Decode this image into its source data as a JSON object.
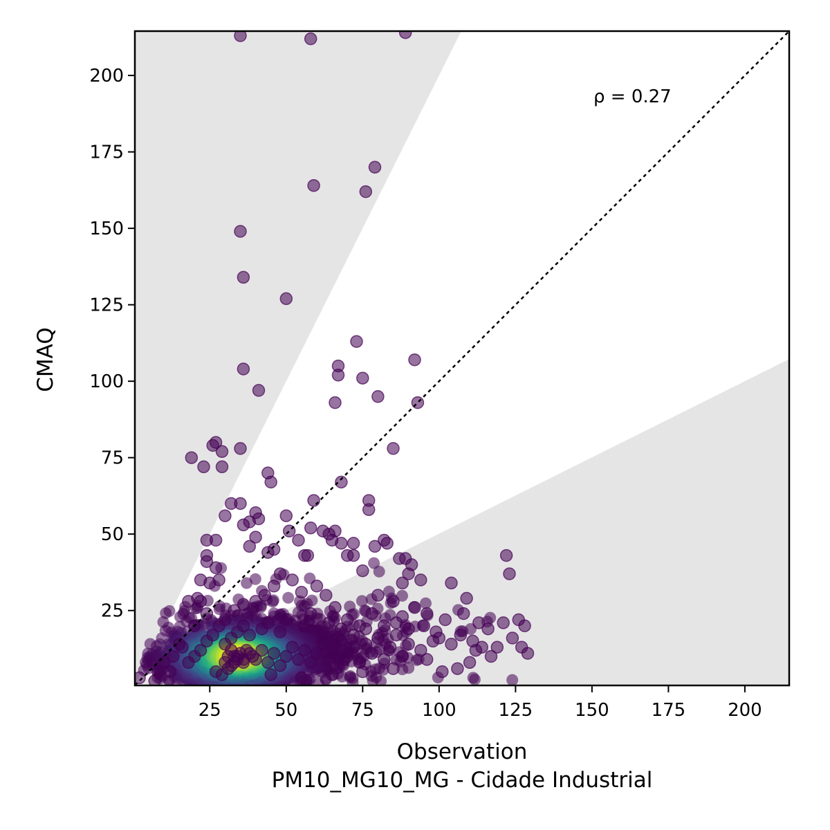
{
  "chart_data": {
    "type": "scatter",
    "title": "",
    "xlabel": "Observation",
    "xlabel_sub": "PM10_MG10_MG - Cidade Industrial",
    "ylabel": "CMAQ",
    "xlim": [
      0.5,
      214.5
    ],
    "ylim": [
      0.5,
      214.5
    ],
    "x_ticks": [
      25,
      50,
      75,
      100,
      125,
      150,
      175,
      200
    ],
    "y_ticks": [
      25,
      50,
      75,
      100,
      125,
      150,
      175,
      200
    ],
    "x_tick_labels": [
      "25",
      "50",
      "75",
      "100",
      "125",
      "150",
      "175",
      "200"
    ],
    "y_tick_labels": [
      "25",
      "50",
      "75",
      "100",
      "125",
      "150",
      "175",
      "200"
    ],
    "annotation": "ρ = 0.27",
    "reference_line": "1:1",
    "factor_of_two_band": true,
    "grid": false,
    "legend": "none",
    "colormap": "viridis (point density)",
    "colors": {
      "band": "#e5e5e5",
      "outlier": "#440154",
      "density_low": "#3b0f70",
      "density_high": "#fde725"
    },
    "points": [
      [
        2,
        3
      ],
      [
        35,
        213
      ],
      [
        58,
        212
      ],
      [
        89,
        214
      ],
      [
        59,
        164
      ],
      [
        76,
        162
      ],
      [
        79,
        170
      ],
      [
        35,
        149
      ],
      [
        36,
        134
      ],
      [
        50,
        127
      ],
      [
        36,
        104
      ],
      [
        41,
        97
      ],
      [
        73,
        113
      ],
      [
        67,
        105
      ],
      [
        67,
        102
      ],
      [
        75,
        101
      ],
      [
        66,
        93
      ],
      [
        80,
        95
      ],
      [
        92,
        107
      ],
      [
        93,
        93
      ],
      [
        19,
        75
      ],
      [
        23,
        72
      ],
      [
        26,
        79
      ],
      [
        27,
        80
      ],
      [
        29,
        77
      ],
      [
        29,
        72
      ],
      [
        35,
        78
      ],
      [
        44,
        70
      ],
      [
        45,
        67
      ],
      [
        68,
        67
      ],
      [
        85,
        78
      ],
      [
        59,
        61
      ],
      [
        77,
        61
      ],
      [
        77,
        58
      ],
      [
        32,
        60
      ],
      [
        35,
        60
      ],
      [
        30,
        56
      ],
      [
        40,
        57
      ],
      [
        41,
        55
      ],
      [
        38,
        54
      ],
      [
        36,
        53
      ],
      [
        50,
        56
      ],
      [
        51,
        51
      ],
      [
        58,
        52
      ],
      [
        62,
        51
      ],
      [
        64,
        50
      ],
      [
        66,
        51
      ],
      [
        54,
        48
      ],
      [
        65,
        48
      ],
      [
        68,
        47
      ],
      [
        72,
        47
      ],
      [
        82,
        48
      ],
      [
        83,
        47
      ],
      [
        79,
        46
      ],
      [
        40,
        49
      ],
      [
        38,
        46
      ],
      [
        44,
        44
      ],
      [
        46,
        45
      ],
      [
        56,
        43
      ],
      [
        57,
        43
      ],
      [
        70,
        43
      ],
      [
        72,
        43
      ],
      [
        87,
        42
      ],
      [
        89,
        42
      ],
      [
        122,
        43
      ],
      [
        123,
        37
      ],
      [
        104,
        34
      ],
      [
        75,
        38
      ],
      [
        91,
        40
      ],
      [
        90,
        37
      ],
      [
        94,
        35
      ],
      [
        88,
        34
      ],
      [
        24,
        48
      ],
      [
        27,
        48
      ],
      [
        24,
        43
      ],
      [
        24,
        41
      ],
      [
        27,
        39
      ],
      [
        22,
        35
      ],
      [
        25,
        34
      ],
      [
        28,
        35
      ],
      [
        18,
        28
      ],
      [
        21,
        29
      ],
      [
        22,
        28
      ],
      [
        24,
        24
      ],
      [
        20,
        20
      ],
      [
        15,
        14
      ],
      [
        13,
        10
      ],
      [
        16,
        13
      ],
      [
        10,
        8
      ],
      [
        8,
        5
      ],
      [
        7,
        2
      ],
      [
        12,
        5
      ],
      [
        109,
        29
      ],
      [
        108,
        24
      ],
      [
        113,
        21
      ],
      [
        116,
        19
      ],
      [
        121,
        21
      ],
      [
        126,
        22
      ],
      [
        128,
        20
      ],
      [
        124,
        16
      ],
      [
        127,
        13
      ],
      [
        129,
        11
      ],
      [
        119,
        13
      ],
      [
        117,
        10
      ],
      [
        112,
        12
      ],
      [
        110,
        8
      ],
      [
        106,
        6
      ],
      [
        101,
        5
      ],
      [
        96,
        9
      ],
      [
        102,
        22
      ],
      [
        99,
        18
      ],
      [
        92,
        26
      ],
      [
        88,
        23
      ],
      [
        85,
        28
      ],
      [
        80,
        30
      ],
      [
        78,
        24
      ],
      [
        74,
        20
      ],
      [
        70,
        22
      ],
      [
        66,
        26
      ],
      [
        63,
        30
      ],
      [
        60,
        33
      ],
      [
        55,
        31
      ],
      [
        52,
        35
      ],
      [
        48,
        37
      ],
      [
        46,
        33
      ],
      [
        43,
        30
      ],
      [
        40,
        28
      ],
      [
        36,
        27
      ],
      [
        33,
        25
      ],
      [
        30,
        22
      ],
      [
        28,
        20
      ],
      [
        26,
        17
      ],
      [
        24,
        15
      ],
      [
        22,
        12
      ],
      [
        20,
        10
      ],
      [
        18,
        8
      ],
      [
        32,
        12
      ],
      [
        34,
        10
      ],
      [
        36,
        8
      ],
      [
        38,
        11
      ],
      [
        40,
        9
      ],
      [
        42,
        12
      ],
      [
        44,
        8
      ],
      [
        46,
        11
      ],
      [
        48,
        7
      ],
      [
        50,
        10
      ],
      [
        52,
        13
      ],
      [
        54,
        9
      ],
      [
        56,
        12
      ],
      [
        58,
        8
      ],
      [
        60,
        11
      ],
      [
        62,
        14
      ],
      [
        64,
        9
      ],
      [
        66,
        12
      ],
      [
        68,
        15
      ],
      [
        70,
        10
      ],
      [
        72,
        13
      ],
      [
        74,
        8
      ],
      [
        76,
        14
      ],
      [
        78,
        11
      ],
      [
        80,
        16
      ],
      [
        82,
        9
      ],
      [
        84,
        13
      ],
      [
        86,
        17
      ],
      [
        88,
        10
      ],
      [
        90,
        14
      ],
      [
        94,
        12
      ],
      [
        98,
        15
      ],
      [
        27,
        5
      ],
      [
        29,
        4
      ],
      [
        31,
        6
      ],
      [
        45,
        4
      ],
      [
        55,
        3
      ],
      [
        65,
        4
      ],
      [
        75,
        5
      ],
      [
        85,
        6
      ],
      [
        30,
        14
      ],
      [
        32,
        16
      ],
      [
        34,
        18
      ],
      [
        36,
        20
      ],
      [
        38,
        17
      ],
      [
        42,
        19
      ],
      [
        44,
        21
      ],
      [
        48,
        18
      ],
      [
        50,
        22
      ],
      [
        56,
        20
      ],
      [
        58,
        24
      ],
      [
        62,
        18
      ],
      [
        64,
        21
      ],
      [
        68,
        19
      ],
      [
        72,
        17
      ],
      [
        76,
        19
      ],
      [
        82,
        20
      ],
      [
        86,
        21
      ],
      [
        90,
        19
      ],
      [
        95,
        20
      ],
      [
        100,
        16
      ],
      [
        104,
        14
      ],
      [
        107,
        17
      ],
      [
        111,
        15
      ],
      [
        114,
        13
      ],
      [
        96,
        24
      ],
      [
        33,
        10
      ],
      [
        34,
        9
      ],
      [
        35,
        11
      ],
      [
        33,
        8
      ],
      [
        36,
        9
      ],
      [
        31,
        10
      ],
      [
        37,
        12
      ],
      [
        30,
        8
      ],
      [
        39,
        10
      ],
      [
        32,
        7
      ]
    ]
  }
}
